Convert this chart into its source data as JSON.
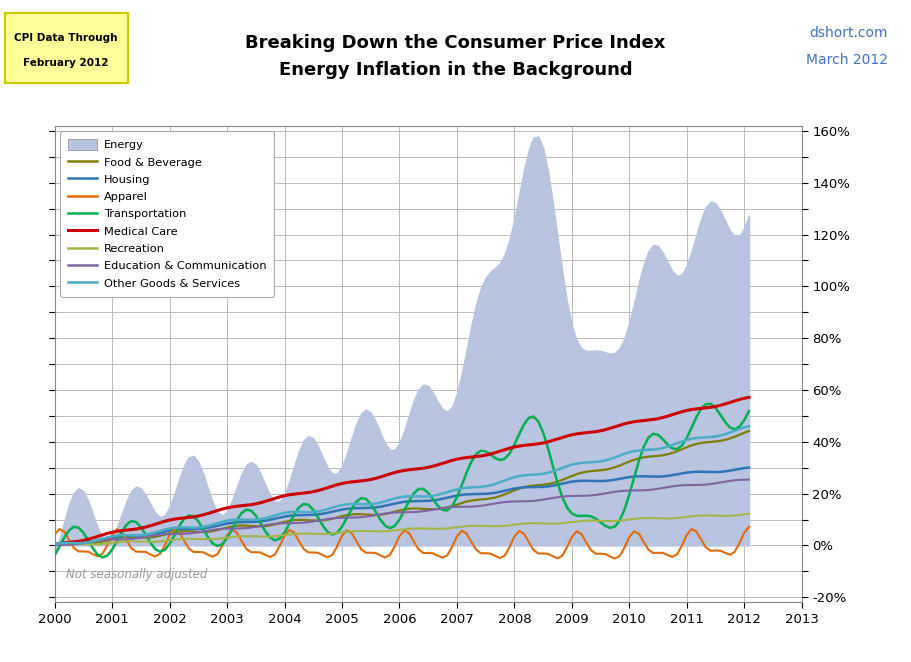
{
  "title_line1": "Breaking Down the Consumer Price Index",
  "title_line2": "Energy Inflation in the Background",
  "watermark_line1": "dshort.com",
  "watermark_line2": "March 2012",
  "footnote": "Not seasonally adjusted",
  "xlim": [
    2000.0,
    2013.0
  ],
  "ylim": [
    -0.22,
    1.62
  ],
  "yticks": [
    -0.2,
    -0.1,
    0.0,
    0.1,
    0.2,
    0.3,
    0.4,
    0.5,
    0.6,
    0.7,
    0.8,
    0.9,
    1.0,
    1.1,
    1.2,
    1.3,
    1.4,
    1.5,
    1.6
  ],
  "ytick_labels": [
    "-20%",
    "",
    "0%",
    "",
    "20%",
    "",
    "40%",
    "",
    "60%",
    "",
    "80%",
    "",
    "100%",
    "",
    "120%",
    "",
    "140%",
    "",
    "160%"
  ],
  "xticks": [
    2000,
    2001,
    2002,
    2003,
    2004,
    2005,
    2006,
    2007,
    2008,
    2009,
    2010,
    2011,
    2012,
    2013
  ],
  "bg_color": "#ffffff",
  "plot_bg_color": "#ffffff",
  "grid_color": "#bbbbbb",
  "colors": {
    "Energy": "#b8c4e0",
    "Food & Beverage": "#7f7f00",
    "Housing": "#2e75b6",
    "Apparel": "#e36c09",
    "Transportation": "#00b050",
    "Medical Care": "#cc0000",
    "Recreation": "#a5b544",
    "Education & Communication": "#8064a2",
    "Other Goods & Services": "#4bacc6"
  }
}
